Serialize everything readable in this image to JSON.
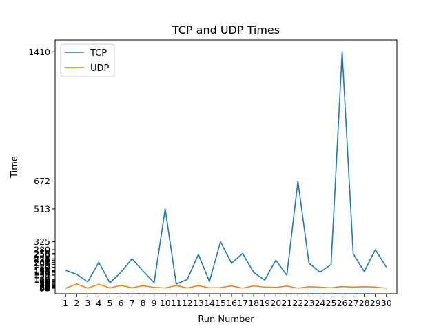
{
  "chart_data": {
    "type": "line",
    "title": "TCP and UDP Times",
    "xlabel": "Run Number",
    "ylabel": "Time",
    "x": [
      1,
      2,
      3,
      4,
      5,
      6,
      7,
      8,
      9,
      10,
      11,
      12,
      13,
      14,
      15,
      16,
      17,
      18,
      19,
      20,
      21,
      22,
      23,
      24,
      25,
      26,
      27,
      28,
      29,
      30
    ],
    "xlim": [
      0.05,
      30.95
    ],
    "ylim": [
      28,
      1478
    ],
    "grid": false,
    "legend_position": "top-left",
    "series": [
      {
        "name": "TCP",
        "color": "#1f77b4",
        "values": [
          162,
          139,
          96,
          208,
          90,
          151,
          228,
          158,
          91,
          513,
          83,
          110,
          253,
          98,
          325,
          203,
          258,
          150,
          106,
          220,
          134,
          672,
          203,
          151,
          195,
          1410,
          256,
          155,
          280,
          180
        ]
      },
      {
        "name": "UDP",
        "color": "#ff7f0e",
        "values": [
          59,
          84,
          60,
          82,
          61,
          76,
          62,
          74,
          64,
          61,
          75,
          61,
          74,
          62,
          63,
          73,
          60,
          73,
          66,
          64,
          72,
          60,
          68,
          65,
          62,
          69,
          66,
          68,
          66,
          60
        ]
      }
    ],
    "y_tick_note": "Dense overlapping y tick labels ranging 59 to 1410 are rendered illegibly on the left axis.",
    "y_ticks": [
      59,
      60,
      61,
      62,
      63,
      64,
      65,
      66,
      68,
      69,
      72,
      73,
      74,
      75,
      76,
      82,
      83,
      84,
      90,
      91,
      96,
      98,
      106,
      110,
      134,
      139,
      150,
      151,
      155,
      158,
      162,
      180,
      195,
      203,
      208,
      220,
      228,
      253,
      256,
      258,
      280,
      325,
      513,
      672,
      1410
    ]
  }
}
